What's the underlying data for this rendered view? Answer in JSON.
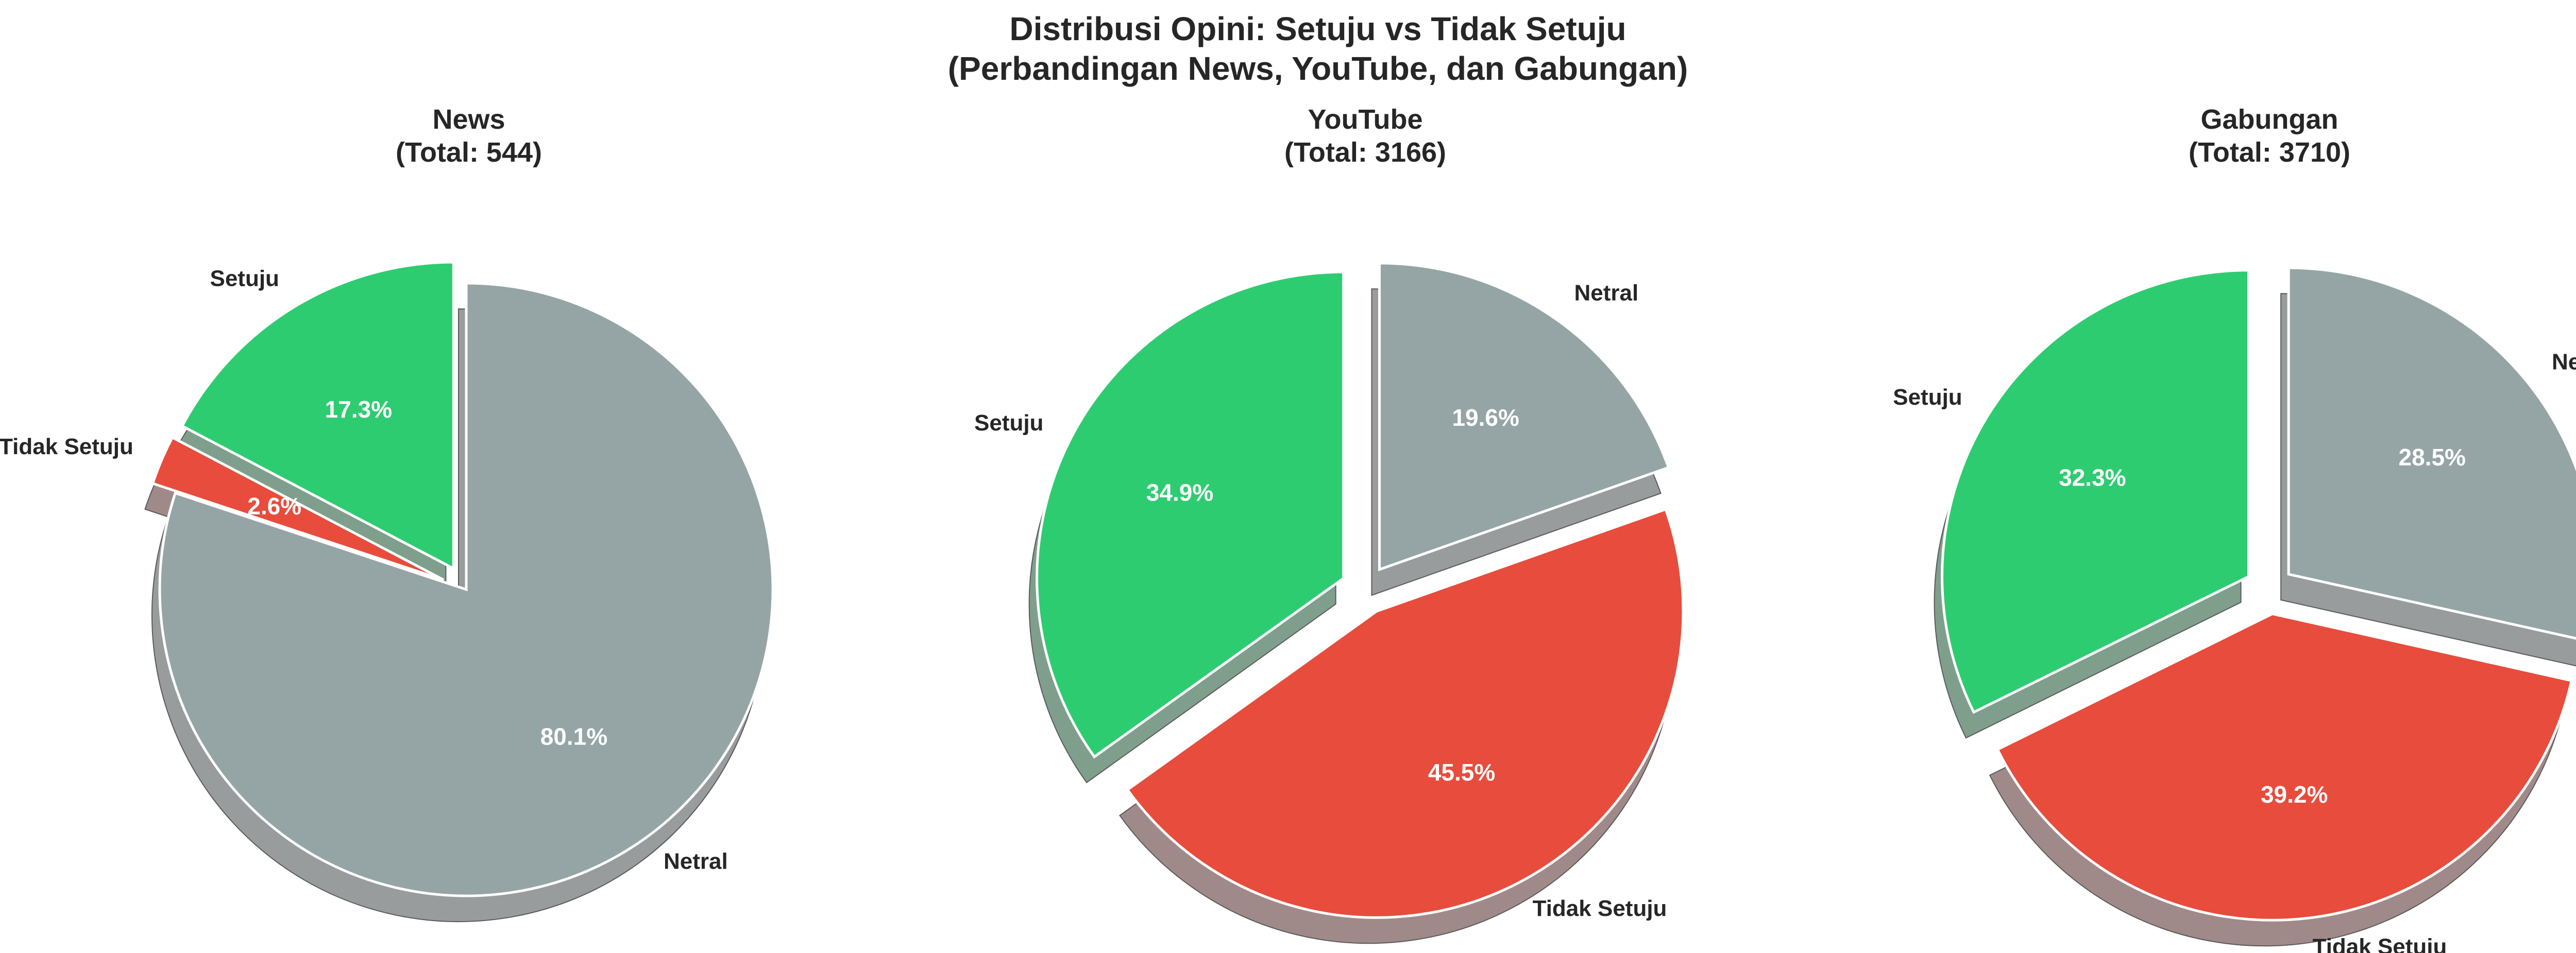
{
  "figure": {
    "title_line1": "Distribusi Opini: Setuju vs Tidak Setuju",
    "title_line2": "(Perbandingan News, YouTube, dan Gabungan)"
  },
  "colors": {
    "Setuju": "#2ecc71",
    "Tidak Setuju": "#e74c3c",
    "Netral": "#95a5a6"
  },
  "chart_data": [
    {
      "type": "pie",
      "title_line1": "News",
      "title_line2": "(Total: 544)",
      "total": 544,
      "categories": [
        "Setuju",
        "Tidak Setuju",
        "Netral"
      ],
      "values": [
        17.3,
        2.6,
        80.1
      ],
      "labels": [
        "17.3%",
        "2.6%",
        "80.1%"
      ],
      "exploded": [
        "Setuju",
        "Tidak Setuju"
      ],
      "shadow": true
    },
    {
      "type": "pie",
      "title_line1": "YouTube",
      "title_line2": "(Total: 3166)",
      "total": 3166,
      "categories": [
        "Setuju",
        "Tidak Setuju",
        "Netral"
      ],
      "values": [
        34.9,
        45.5,
        19.6
      ],
      "labels": [
        "34.9%",
        "45.5%",
        "19.6%"
      ],
      "exploded": [
        "Setuju",
        "Tidak Setuju",
        "Netral"
      ],
      "shadow": true
    },
    {
      "type": "pie",
      "title_line1": "Gabungan",
      "title_line2": "(Total: 3710)",
      "total": 3710,
      "categories": [
        "Setuju",
        "Tidak Setuju",
        "Netral"
      ],
      "values": [
        32.3,
        39.2,
        28.5
      ],
      "labels": [
        "32.3%",
        "39.2%",
        "28.5%"
      ],
      "exploded": [
        "Setuju",
        "Tidak Setuju",
        "Netral"
      ],
      "shadow": true
    }
  ]
}
